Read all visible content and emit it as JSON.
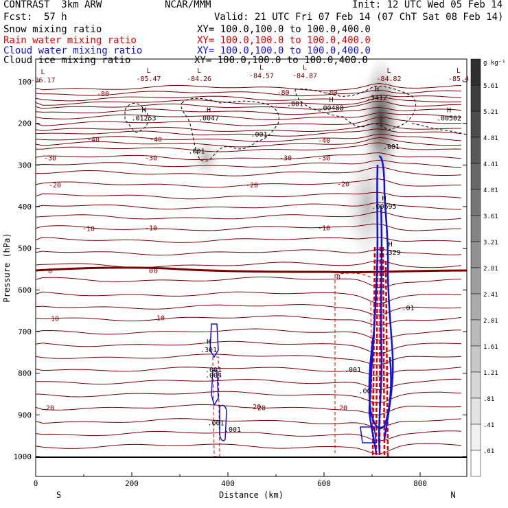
{
  "header": {
    "model": "CONTRAST  3km ARW",
    "org": "NCAR/MMM",
    "init": "Init: 12 UTC Wed 05 Feb 14",
    "fcst_label": "Fcst:",
    "fcst_value": "57 h",
    "valid": "Valid: 21 UTC Fri 07 Feb 14 (07 ChT Sat 08 Feb 14)"
  },
  "fields": [
    {
      "name": "Snow mixing ratio",
      "xy": "XY= 100.0,100.0 to 100.0,400.0",
      "color": "#000000"
    },
    {
      "name": "Rain water mixing ratio",
      "xy": "XY= 100.0,100.0 to 100.0,400.0",
      "color": "#e00000"
    },
    {
      "name": "Cloud water mixing ratio",
      "xy": "XY= 100.0,100.0 to 100.0,400.0",
      "color": "#1010e0"
    },
    {
      "name": "Cloud ice mixing ratio",
      "xy": "XY= 100.0,100.0 to 100.0,400.0",
      "color": "#000000"
    }
  ],
  "colors": {
    "temperature": "#7a0000",
    "rain": "#e00000",
    "cloud_water": "#1010e0",
    "snow_shade": "#303030"
  },
  "chart_data": {
    "type": "line",
    "subtype": "vertical cross-section contour plot",
    "xlabel": "Distance (km)",
    "ylabel": "Pressure (hPa)",
    "xlim": [
      0,
      900
    ],
    "ylim": [
      1050,
      50
    ],
    "x_ticks": [
      0,
      200,
      400,
      600,
      800
    ],
    "y_ticks": [
      100,
      200,
      300,
      400,
      500,
      600,
      700,
      800,
      900,
      1000
    ],
    "x_end_labels": {
      "left": "S",
      "right": "N"
    },
    "temperature_contours": [
      {
        "label": "-80",
        "p": 128,
        "x_label": 140
      },
      {
        "label": "-80",
        "p": 125,
        "x_label": 515
      },
      {
        "label": "-80",
        "p": 125,
        "x_label": 615
      },
      {
        "label": "-40",
        "p": 238,
        "x_label": 120
      },
      {
        "label": "-40",
        "p": 238,
        "x_label": 250
      },
      {
        "label": "-40",
        "p": 240,
        "x_label": 600
      },
      {
        "label": "-30",
        "p": 282,
        "x_label": 30
      },
      {
        "label": "-30",
        "p": 282,
        "x_label": 240
      },
      {
        "label": "-30",
        "p": 282,
        "x_label": 520
      },
      {
        "label": "-30",
        "p": 282,
        "x_label": 600
      },
      {
        "label": "-20",
        "p": 347,
        "x_label": 40
      },
      {
        "label": "-20",
        "p": 347,
        "x_label": 450
      },
      {
        "label": "-20",
        "p": 345,
        "x_label": 640
      },
      {
        "label": "-10",
        "p": 452,
        "x_label": 110
      },
      {
        "label": "-10",
        "p": 450,
        "x_label": 240
      },
      {
        "label": "-10",
        "p": 450,
        "x_label": 600
      },
      {
        "label": "0",
        "p": 553,
        "x_label": 30
      },
      {
        "label": "0",
        "p": 553,
        "x_label": 250
      },
      {
        "label": "0",
        "p": 553,
        "x_label": 240
      },
      {
        "label": "0",
        "p": 568,
        "x_label": 630
      },
      {
        "label": "10",
        "p": 668,
        "x_label": 40
      },
      {
        "label": "10",
        "p": 666,
        "x_label": 260
      },
      {
        "label": "20",
        "p": 882,
        "x_label": 30
      },
      {
        "label": "20",
        "p": 882,
        "x_label": 470
      },
      {
        "label": "20",
        "p": 882,
        "x_label": 640
      },
      {
        "label": "20",
        "p": 880,
        "x_label": 460
      }
    ],
    "extrema_labels": [
      {
        "type": "L",
        "value": "-86.17",
        "x": 15,
        "p": 98
      },
      {
        "type": "L",
        "value": "-85.47",
        "x": 235,
        "p": 95
      },
      {
        "type": "L",
        "value": "-84.26",
        "x": 340,
        "p": 95
      },
      {
        "type": "L",
        "value": "-84.57",
        "x": 470,
        "p": 88
      },
      {
        "type": "L",
        "value": "-84.87",
        "x": 560,
        "p": 88
      },
      {
        "type": "L",
        "value": "-84.82",
        "x": 735,
        "p": 95
      },
      {
        "type": "L",
        "value": "-85.4",
        "x": 880,
        "p": 95
      },
      {
        "type": "H",
        "value": ".3412",
        "x": 710,
        "p": 140
      },
      {
        "type": "H",
        "value": ".00488",
        "x": 615,
        "p": 165
      },
      {
        "type": "H",
        "value": ".01253",
        "x": 225,
        "p": 190
      },
      {
        "type": "H",
        "value": ".0047",
        "x": 360,
        "p": 190
      },
      {
        "type": "H",
        "value": ".00502",
        "x": 860,
        "p": 190
      },
      {
        "type": "H",
        "value": ".00695",
        "x": 725,
        "p": 402
      },
      {
        "type": "H",
        "value": "1.329",
        "x": 738,
        "p": 512
      },
      {
        "type": "H",
        "value": ".301",
        "x": 360,
        "p": 746
      }
    ],
    "contour_value_labels": [
      {
        "value": ".001",
        "x": 540,
        "p": 152
      },
      {
        "value": ".001",
        "x": 465,
        "p": 225
      },
      {
        "value": ".001",
        "x": 335,
        "p": 266
      },
      {
        "value": ".001",
        "x": 740,
        "p": 255
      },
      {
        "value": ".001",
        "x": 370,
        "p": 791
      },
      {
        "value": ".004",
        "x": 370,
        "p": 804
      },
      {
        "value": ".001",
        "x": 660,
        "p": 791
      },
      {
        "value": ".001",
        "x": 375,
        "p": 918
      },
      {
        "value": ".001",
        "x": 410,
        "p": 934
      },
      {
        "value": ".01",
        "x": 775,
        "p": 642
      },
      {
        "value": ".00",
        "x": 685,
        "p": 842
      }
    ],
    "colorbar": {
      "unit": "g kg⁻¹",
      "levels": [
        ".01",
        ".41",
        ".81",
        "1.21",
        "1.61",
        "2.01",
        "2.41",
        "2.81",
        "3.21",
        "3.61",
        "4.01",
        "4.41",
        "4.81",
        "5.21",
        "5.61"
      ]
    }
  }
}
